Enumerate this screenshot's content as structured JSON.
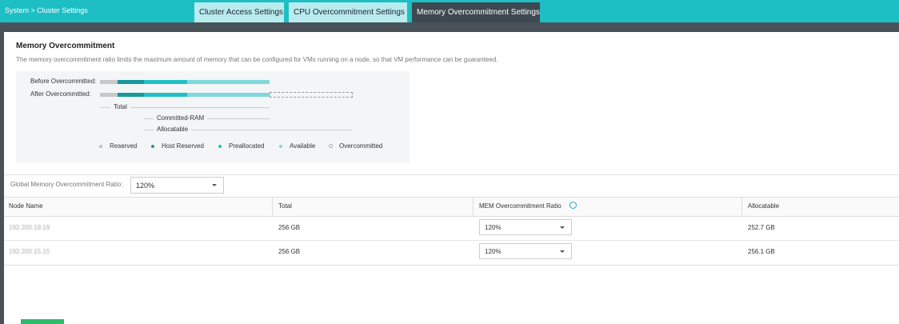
{
  "header": {
    "breadcrumb": "System  >  Cluster Settings",
    "tabs": [
      "Cluster Access Settings",
      "CPU Overcommitment Settings",
      "Memory Overcommitment Settings"
    ]
  },
  "section": {
    "title": "Memory Overcommitment",
    "description": "The memory overcommitment ratio limits the maximum amount of memory that can be configured for VMs running on a node, so that VM performance can be guaranteed."
  },
  "diagram": {
    "rows": [
      "Before Overcommitted:",
      "After Overcommitted:"
    ],
    "brackets": [
      "Total",
      "Committed-RAM",
      "Allocatable"
    ],
    "legend": [
      "Reserved",
      "Host Reserved",
      "Preallocated",
      "Available",
      "Overcommitted"
    ]
  },
  "global": {
    "label": "Global Memory Overcommitment Ratio:",
    "value": "120%"
  },
  "table": {
    "columns": [
      "Node Name",
      "Total",
      "MEM Overcommitment Ratio",
      "Allocatable"
    ],
    "rows": [
      [
        "192.200.19.19",
        "256 GB",
        "120%",
        "252.7 GB"
      ],
      [
        "192.200.15.15",
        "256 GB",
        "120%",
        "256.1 GB"
      ]
    ]
  }
}
